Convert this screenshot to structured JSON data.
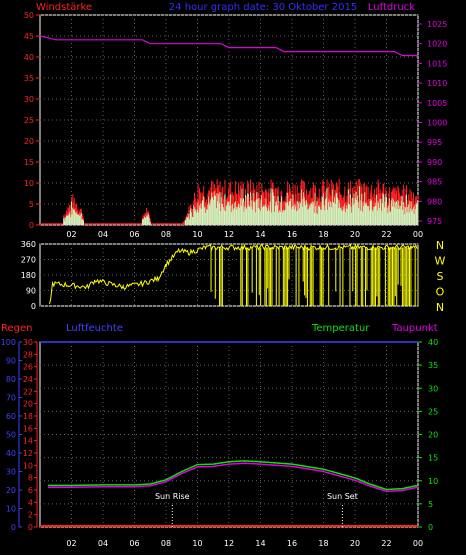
{
  "header": {
    "left_title": "Windstärke",
    "center_title": "24 hour graph date:  30 Oktober 2015",
    "right_title": "Luftdruck"
  },
  "colors": {
    "wind": "#ff2020",
    "gust": "#ffff40",
    "wind_avg": "#c8ffc8",
    "pressure": "#e000e0",
    "direction": "#ffff00",
    "temperature": "#10e010",
    "dewpoint": "#e000e0",
    "rain": "#ff2020",
    "humidity": "#4040ff",
    "grid": "#606060",
    "title_center": "#3030ff"
  },
  "chart_data": [
    {
      "type": "bar",
      "name": "wind",
      "x_ticks": [
        "02",
        "04",
        "06",
        "08",
        "10",
        "12",
        "14",
        "16",
        "18",
        "20",
        "22",
        "00"
      ],
      "y_left_ticks": [
        0,
        5,
        10,
        15,
        20,
        25,
        30,
        35,
        40,
        45,
        50
      ],
      "y_left_range": [
        0,
        50
      ],
      "y_right_ticks": [
        975,
        980,
        985,
        990,
        995,
        1000,
        1005,
        1010,
        1015,
        1020,
        1025
      ],
      "y_right_range": [
        972,
        1028
      ],
      "x_range_hours": [
        0,
        24
      ],
      "wind_segments": [
        {
          "from": 1.5,
          "to": 2.8,
          "min": 0,
          "max": 8
        },
        {
          "from": 6.5,
          "to": 7.0,
          "min": 0,
          "max": 5
        },
        {
          "from": 9.0,
          "to": 24.0,
          "min": 0,
          "max": 13
        }
      ],
      "pressure": [
        {
          "h": 0.0,
          "v": 1022
        },
        {
          "h": 1.0,
          "v": 1021
        },
        {
          "h": 6.5,
          "v": 1021
        },
        {
          "h": 7.0,
          "v": 1020
        },
        {
          "h": 11.5,
          "v": 1020
        },
        {
          "h": 12.0,
          "v": 1019
        },
        {
          "h": 15.0,
          "v": 1019
        },
        {
          "h": 15.5,
          "v": 1018
        },
        {
          "h": 22.5,
          "v": 1018
        },
        {
          "h": 23.0,
          "v": 1017
        },
        {
          "h": 24.0,
          "v": 1017
        }
      ]
    },
    {
      "type": "line",
      "name": "wind-direction",
      "y_ticks": [
        0,
        90,
        180,
        270,
        360
      ],
      "y_range": [
        0,
        360
      ],
      "compass_labels": [
        "N",
        "W",
        "S",
        "O",
        "N"
      ],
      "points": [
        {
          "h": 0.6,
          "v": 0
        },
        {
          "h": 0.8,
          "v": 130
        },
        {
          "h": 2.0,
          "v": 120
        },
        {
          "h": 3.0,
          "v": 110
        },
        {
          "h": 3.5,
          "v": 150
        },
        {
          "h": 4.8,
          "v": 120
        },
        {
          "h": 5.3,
          "v": 110
        },
        {
          "h": 6.5,
          "v": 130
        },
        {
          "h": 7.5,
          "v": 160
        },
        {
          "h": 8.0,
          "v": 240
        },
        {
          "h": 8.8,
          "v": 320
        },
        {
          "h": 9.5,
          "v": 310
        },
        {
          "h": 10.5,
          "v": 340
        },
        {
          "h": 24.0,
          "v": 340
        }
      ]
    },
    {
      "type": "line",
      "name": "climate",
      "left_titles": [
        "Regen",
        "Luftfeuchte"
      ],
      "right_titles": [
        "Temperatur",
        "Taupunkt"
      ],
      "humidity_ticks": [
        0,
        10,
        20,
        30,
        40,
        50,
        60,
        70,
        80,
        90,
        100
      ],
      "humidity_range": [
        0,
        100
      ],
      "rain_ticks": [
        0,
        2,
        4,
        6,
        8,
        10,
        12,
        14,
        16,
        18,
        20,
        22,
        24,
        26,
        28,
        30
      ],
      "rain_range": [
        0,
        30
      ],
      "temp_ticks": [
        0,
        5,
        10,
        15,
        20,
        25,
        30,
        35,
        40
      ],
      "temp_range": [
        0,
        40
      ],
      "sun_rise": {
        "label": "Sun Rise",
        "h": 8.4
      },
      "sun_set": {
        "label": "Sun Set",
        "h": 19.2
      },
      "temperature": [
        {
          "h": 0.5,
          "v": 9.0
        },
        {
          "h": 2,
          "v": 9.0
        },
        {
          "h": 4,
          "v": 9.1
        },
        {
          "h": 6,
          "v": 9.1
        },
        {
          "h": 7,
          "v": 9.3
        },
        {
          "h": 8,
          "v": 10.2
        },
        {
          "h": 9,
          "v": 12
        },
        {
          "h": 10,
          "v": 13.5
        },
        {
          "h": 11,
          "v": 13.6
        },
        {
          "h": 12,
          "v": 14.1
        },
        {
          "h": 13,
          "v": 14.3
        },
        {
          "h": 14,
          "v": 14.1
        },
        {
          "h": 16,
          "v": 13.6
        },
        {
          "h": 18,
          "v": 12.5
        },
        {
          "h": 20,
          "v": 10.6
        },
        {
          "h": 21,
          "v": 9.2
        },
        {
          "h": 22,
          "v": 8.1
        },
        {
          "h": 23,
          "v": 8.3
        },
        {
          "h": 24,
          "v": 9.0
        }
      ],
      "dewpoint": [
        {
          "h": 0.5,
          "v": 8.6
        },
        {
          "h": 2,
          "v": 8.6
        },
        {
          "h": 4,
          "v": 8.7
        },
        {
          "h": 6,
          "v": 8.7
        },
        {
          "h": 7,
          "v": 8.9
        },
        {
          "h": 8,
          "v": 9.8
        },
        {
          "h": 9,
          "v": 11.6
        },
        {
          "h": 10,
          "v": 13.0
        },
        {
          "h": 11,
          "v": 13.1
        },
        {
          "h": 12,
          "v": 13.6
        },
        {
          "h": 13,
          "v": 13.8
        },
        {
          "h": 14,
          "v": 13.6
        },
        {
          "h": 16,
          "v": 13.1
        },
        {
          "h": 18,
          "v": 12.0
        },
        {
          "h": 20,
          "v": 10.1
        },
        {
          "h": 21,
          "v": 8.8
        },
        {
          "h": 22,
          "v": 7.7
        },
        {
          "h": 23,
          "v": 7.9
        },
        {
          "h": 24,
          "v": 8.6
        }
      ],
      "rain": 0,
      "humidity": 100
    }
  ]
}
